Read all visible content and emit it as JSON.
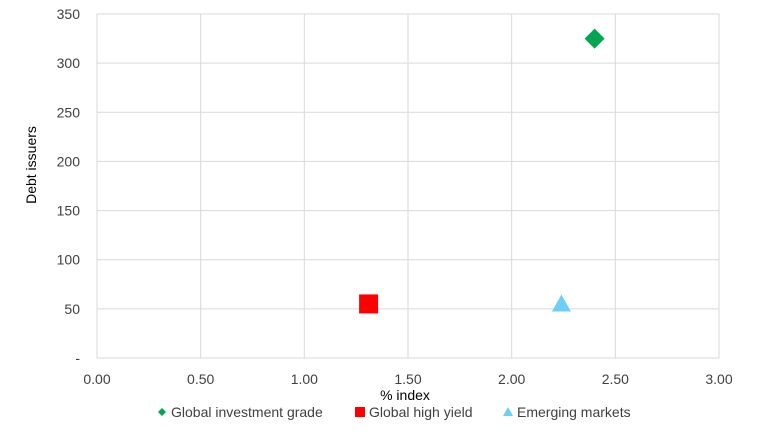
{
  "chart_data": {
    "type": "scatter",
    "title": "",
    "xlabel": "% index",
    "ylabel": "Debt issuers",
    "xlim": [
      0,
      3
    ],
    "ylim": [
      0,
      350
    ],
    "x_ticks": [
      "0.00",
      "0.50",
      "1.00",
      "1.50",
      "2.00",
      "2.50",
      "3.00"
    ],
    "y_ticks": [
      "-",
      "50",
      "100",
      "150",
      "200",
      "250",
      "300",
      "350"
    ],
    "grid": true,
    "legend_position": "bottom",
    "series": [
      {
        "name": "Global investment grade",
        "marker": "diamond",
        "color": "#00A650",
        "points": [
          {
            "x": 2.4,
            "y": 325
          }
        ]
      },
      {
        "name": "Global high yield",
        "marker": "square",
        "color": "#FF0000",
        "points": [
          {
            "x": 1.31,
            "y": 55
          }
        ]
      },
      {
        "name": "Emerging markets",
        "marker": "triangle",
        "color": "#6DCFF6",
        "points": [
          {
            "x": 2.24,
            "y": 55
          }
        ]
      }
    ]
  }
}
